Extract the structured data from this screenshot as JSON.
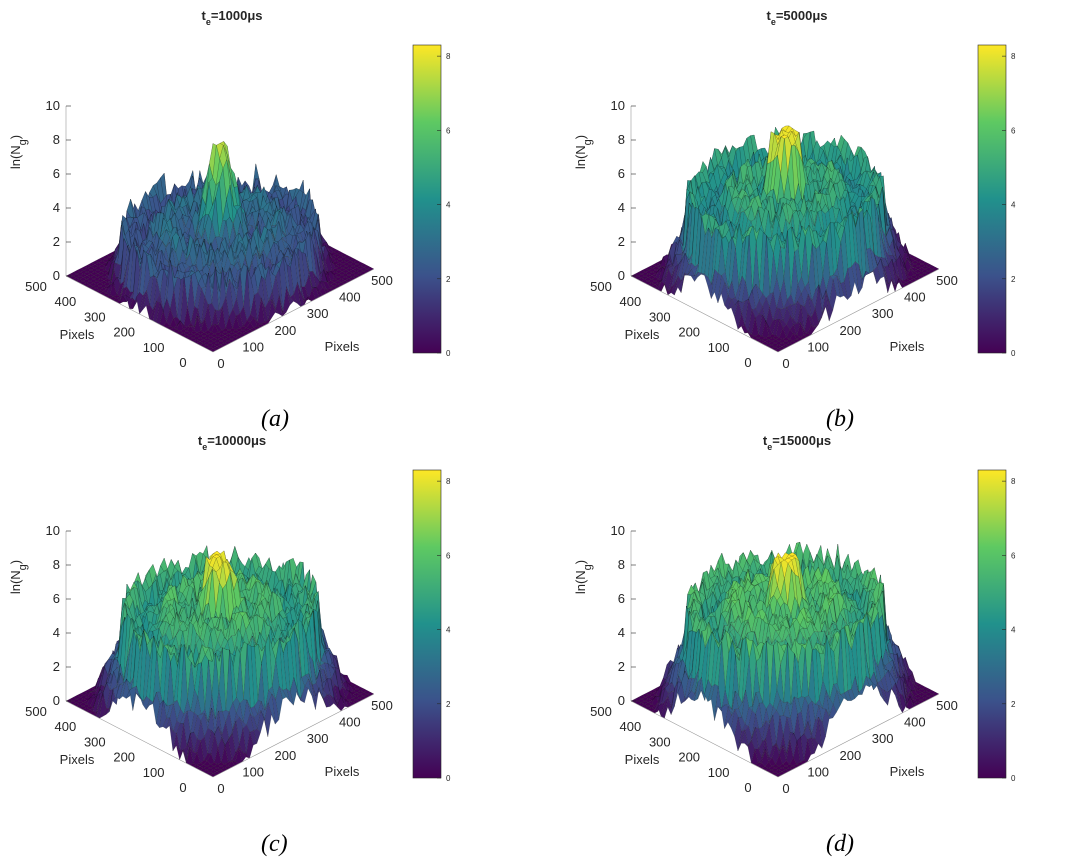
{
  "figure": {
    "captions": [
      "(a)",
      "(b)",
      "(c)",
      "(d)"
    ]
  },
  "colormap": {
    "name": "viridis",
    "stops": [
      "#440154",
      "#3b528b",
      "#21918c",
      "#5ec962",
      "#fde725"
    ]
  },
  "chart_data": [
    {
      "type": "surface3d",
      "title_main": "t",
      "title_sub": "e",
      "title_rest": "=1000μs",
      "ylabel_main": "ln(N",
      "ylabel_sub": "g",
      "ylabel_rest": ")",
      "left_axis_label": "Pixels",
      "right_axis_label": "Pixels",
      "z_ticks": [
        "0",
        "2",
        "4",
        "6",
        "8",
        "10"
      ],
      "zlim": [
        0,
        10
      ],
      "left_ticks": [
        "0",
        "100",
        "200",
        "300",
        "400",
        "500"
      ],
      "right_ticks": [
        "0",
        "100",
        "200",
        "300",
        "400",
        "500"
      ],
      "colorbar_ticks": [
        "0",
        "2",
        "4",
        "6",
        "8"
      ],
      "colorbar_range": [
        0,
        8.3
      ],
      "peak": 7.6,
      "plateau": false,
      "ring_level": 2.5,
      "edge_level": 1.2
    },
    {
      "type": "surface3d",
      "title_main": "t",
      "title_sub": "e",
      "title_rest": "=5000μs",
      "ylabel_main": "ln(N",
      "ylabel_sub": "g",
      "ylabel_rest": ")",
      "left_axis_label": "Pixels",
      "right_axis_label": "Pixels",
      "z_ticks": [
        "0",
        "2",
        "4",
        "6",
        "8",
        "10"
      ],
      "zlim": [
        0,
        10
      ],
      "left_ticks": [
        "0",
        "100",
        "200",
        "300",
        "400",
        "500"
      ],
      "right_ticks": [
        "0",
        "100",
        "200",
        "300",
        "400",
        "500"
      ],
      "colorbar_ticks": [
        "0",
        "2",
        "4",
        "6",
        "8"
      ],
      "colorbar_range": [
        0,
        8.3
      ],
      "peak": 8.3,
      "plateau": true,
      "ring_level": 4.2,
      "edge_level": 2.6
    },
    {
      "type": "surface3d",
      "title_main": "t",
      "title_sub": "e",
      "title_rest": "=10000μs",
      "ylabel_main": "ln(N",
      "ylabel_sub": "g",
      "ylabel_rest": ")",
      "left_axis_label": "Pixels",
      "right_axis_label": "Pixels",
      "z_ticks": [
        "0",
        "2",
        "4",
        "6",
        "8",
        "10"
      ],
      "zlim": [
        0,
        10
      ],
      "left_ticks": [
        "0",
        "100",
        "200",
        "300",
        "400",
        "500"
      ],
      "right_ticks": [
        "0",
        "100",
        "200",
        "300",
        "400",
        "500"
      ],
      "colorbar_ticks": [
        "0",
        "2",
        "4",
        "6",
        "8"
      ],
      "colorbar_range": [
        0,
        8.3
      ],
      "peak": 8.3,
      "plateau": true,
      "ring_level": 4.7,
      "edge_level": 3.0
    },
    {
      "type": "surface3d",
      "title_main": "t",
      "title_sub": "e",
      "title_rest": "=15000μs",
      "ylabel_main": "ln(N",
      "ylabel_sub": "g",
      "ylabel_rest": ")",
      "left_axis_label": "Pixels",
      "right_axis_label": "Pixels",
      "z_ticks": [
        "0",
        "2",
        "4",
        "6",
        "8",
        "10"
      ],
      "zlim": [
        0,
        10
      ],
      "left_ticks": [
        "0",
        "100",
        "200",
        "300",
        "400",
        "500"
      ],
      "right_ticks": [
        "0",
        "100",
        "200",
        "300",
        "400",
        "500"
      ],
      "colorbar_ticks": [
        "0",
        "2",
        "4",
        "6",
        "8"
      ],
      "colorbar_range": [
        0,
        8.3
      ],
      "peak": 8.3,
      "plateau": true,
      "ring_level": 5.0,
      "edge_level": 3.2
    }
  ]
}
